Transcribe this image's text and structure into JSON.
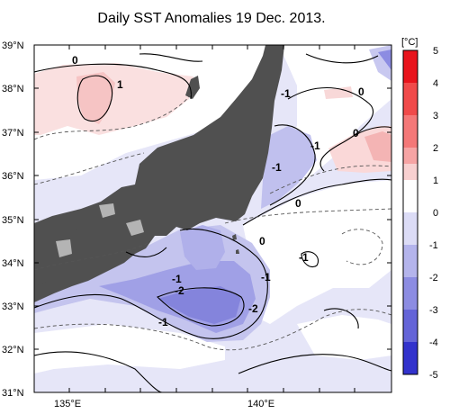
{
  "title": "Daily SST Anomalies 19 Dec. 2013.",
  "unit": "[°C]",
  "lat_labels": [
    "39°N",
    "38°N",
    "37°N",
    "36°N",
    "35°N",
    "34°N",
    "33°N",
    "32°N",
    "31°N"
  ],
  "lon_labels": [
    "135°E",
    "140°E"
  ],
  "contour_labels": [
    {
      "text": "0"
    },
    {
      "text": "1"
    },
    {
      "text": "-1"
    },
    {
      "text": "0"
    },
    {
      "text": "-1"
    },
    {
      "text": "0"
    },
    {
      "text": "-1"
    },
    {
      "text": "0"
    },
    {
      "text": "0"
    },
    {
      "text": "-1"
    },
    {
      "text": "-1"
    },
    {
      "text": "-1"
    },
    {
      "text": "-2"
    },
    {
      "text": "-2"
    },
    {
      "text": "-1"
    }
  ],
  "colorbar": {
    "labels": [
      "5",
      "4",
      "3",
      "2",
      "1",
      "0",
      "-1",
      "-2",
      "-3",
      "-4",
      "-5"
    ],
    "colors": [
      "#e8141c",
      "#f04a4a",
      "#f47878",
      "#f6a4a4",
      "#f8d0d0",
      "#ffffff",
      "#dcdcf6",
      "#b4b4ec",
      "#8c8ce2",
      "#6464d8",
      "#3232cc"
    ]
  },
  "colors": {
    "land": "#505050",
    "lake": "#b4b4b4",
    "sea_base": "#e6e6f8"
  }
}
